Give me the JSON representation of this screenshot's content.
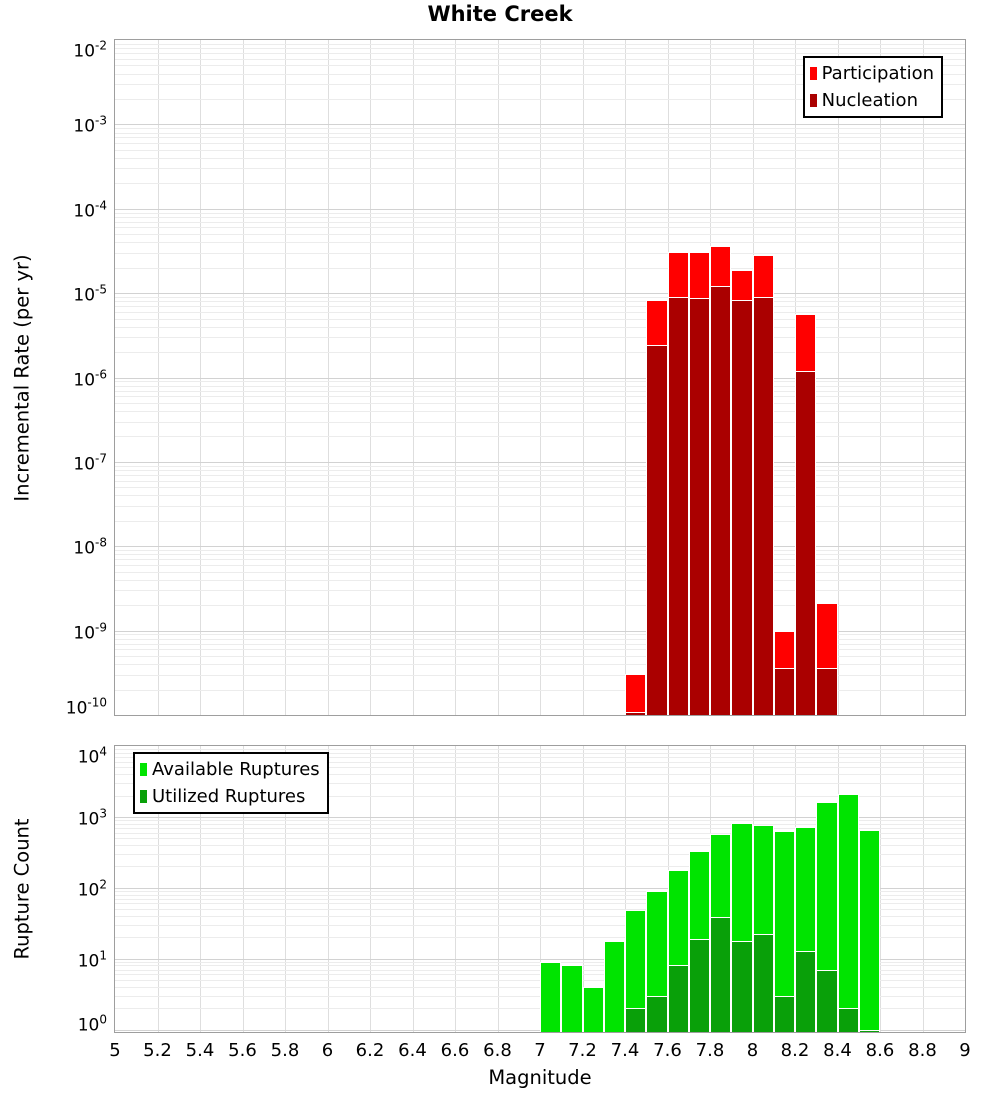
{
  "title": "White Creek",
  "colors": {
    "participation_red": "#FF0000",
    "nucleation_dark_red": "#AA0000",
    "available_green": "#00E400",
    "utilized_dark_green": "#09A009",
    "grid_major": "#D2D2D2",
    "grid_minor": "#ECECEC",
    "grid_vertical": "#DEDEDE",
    "plot_border": "#9E9E9E",
    "bar_edge": "#FFFFFF",
    "legend_border": "#000000"
  },
  "x_axis": {
    "label": "Magnitude",
    "min": 5,
    "max": 9,
    "tick_step": 0.2,
    "tick_labels": [
      "5",
      "5.2",
      "5.4",
      "5.6",
      "5.8",
      "6",
      "6.2",
      "6.4",
      "6.6",
      "6.8",
      "7",
      "7.2",
      "7.4",
      "7.6",
      "7.8",
      "8",
      "8.2",
      "8.4",
      "8.6",
      "8.8",
      "9"
    ]
  },
  "chart_data": [
    {
      "type": "bar",
      "title": "White Creek",
      "xlabel": "Magnitude",
      "ylabel": "Incremental Rate (per yr)",
      "y_scale": "log",
      "ylim": [
        1e-10,
        0.01
      ],
      "y_tick_exponents": [
        -2,
        -3,
        -4,
        -5,
        -6,
        -7,
        -8,
        -9,
        -10
      ],
      "xlim": [
        5,
        9
      ],
      "bin_width": 0.1,
      "bin_starts": [
        7.4,
        7.5,
        7.6,
        7.7,
        7.8,
        7.9,
        8.0,
        8.1,
        8.2,
        8.3
      ],
      "grid": true,
      "legend_position": "top-right",
      "series": [
        {
          "name": "Participation",
          "color": "#FF0000",
          "values": [
            3.1e-10,
            8.2e-06,
            3.1e-05,
            3.1e-05,
            3.6e-05,
            1.9e-05,
            2.8e-05,
            1e-09,
            5.6e-06,
            2.1e-09
          ]
        },
        {
          "name": "Nucleation",
          "color": "#AA0000",
          "values": [
            1.1e-10,
            2.4e-06,
            8.9e-06,
            8.8e-06,
            1.2e-05,
            8.2e-06,
            8.9e-06,
            3.6e-10,
            1.2e-06,
            3.6e-10
          ]
        }
      ]
    },
    {
      "type": "bar",
      "xlabel": "Magnitude",
      "ylabel": "Rupture Count",
      "y_scale": "log",
      "ylim": [
        1,
        10000.0
      ],
      "y_tick_exponents": [
        4,
        3,
        2,
        1,
        0
      ],
      "xlim": [
        5,
        9
      ],
      "bin_width": 0.1,
      "bin_starts": [
        7.0,
        7.1,
        7.2,
        7.3,
        7.4,
        7.5,
        7.6,
        7.7,
        7.8,
        7.9,
        8.0,
        8.1,
        8.2,
        8.3,
        8.4,
        8.5
      ],
      "grid": true,
      "legend_position": "top-left",
      "series": [
        {
          "name": "Available Ruptures",
          "color": "#00E400",
          "values": [
            9,
            8,
            4,
            18,
            49,
            91,
            180,
            330,
            570,
            820,
            770,
            640,
            730,
            1600,
            2100,
            650
          ]
        },
        {
          "name": "Utilized Ruptures",
          "color": "#09A009",
          "values": [
            0,
            0,
            0,
            0,
            2,
            3,
            8,
            19,
            39,
            18,
            22,
            3,
            13,
            7,
            2,
            1
          ]
        }
      ]
    }
  ]
}
